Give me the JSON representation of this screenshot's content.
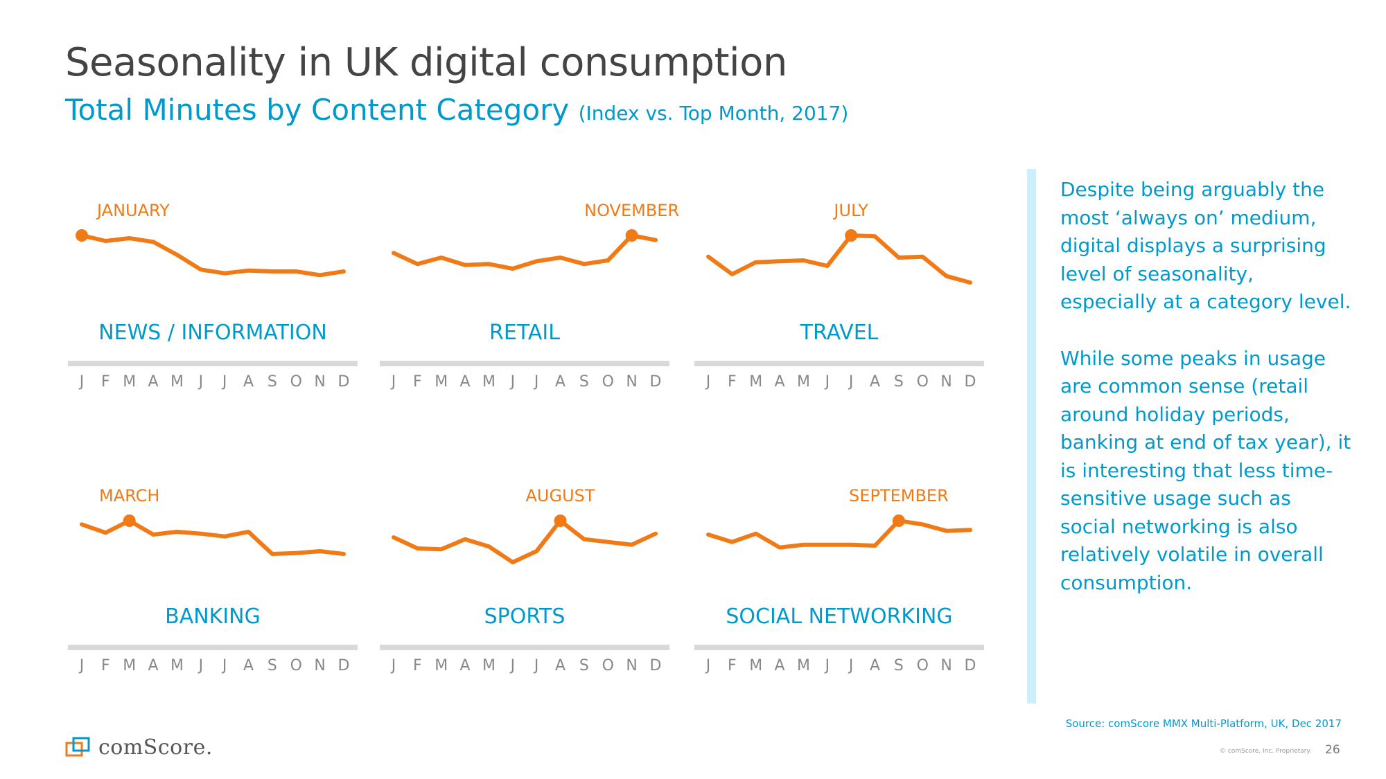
{
  "header": {
    "title": "Seasonality in UK digital consumption",
    "subtitle": "Total Minutes by Content Category",
    "subtitle_note": "(Index vs. Top Month, 2017)"
  },
  "chart_data": [
    {
      "type": "line",
      "title": "NEWS / INFORMATION",
      "peak_label": "JANUARY",
      "peak_index": 0,
      "categories": [
        "J",
        "F",
        "M",
        "A",
        "M",
        "J",
        "J",
        "A",
        "S",
        "O",
        "N",
        "D"
      ],
      "values": [
        100,
        94,
        97,
        93,
        79,
        63,
        59,
        62,
        61,
        61,
        57,
        61
      ],
      "ylim": [
        0,
        100
      ]
    },
    {
      "type": "line",
      "title": "RETAIL",
      "peak_label": "NOVEMBER",
      "peak_index": 10,
      "categories": [
        "J",
        "F",
        "M",
        "A",
        "M",
        "J",
        "J",
        "A",
        "S",
        "O",
        "N",
        "D"
      ],
      "values": [
        81,
        69,
        76,
        68,
        69,
        64,
        72,
        76,
        69,
        73,
        100,
        95
      ],
      "ylim": [
        0,
        100
      ]
    },
    {
      "type": "line",
      "title": "TRAVEL",
      "peak_label": "JULY",
      "peak_index": 6,
      "categories": [
        "J",
        "F",
        "M",
        "A",
        "M",
        "J",
        "J",
        "A",
        "S",
        "O",
        "N",
        "D"
      ],
      "values": [
        77,
        58,
        71,
        72,
        73,
        67,
        100,
        99,
        76,
        77,
        56,
        49
      ],
      "ylim": [
        0,
        100
      ]
    },
    {
      "type": "line",
      "title": "BANKING",
      "peak_label": "MARCH",
      "peak_index": 2,
      "categories": [
        "J",
        "F",
        "M",
        "A",
        "M",
        "J",
        "J",
        "A",
        "S",
        "O",
        "N",
        "D"
      ],
      "values": [
        96,
        87,
        100,
        85,
        88,
        86,
        83,
        88,
        64,
        65,
        67,
        64
      ],
      "ylim": [
        0,
        100
      ]
    },
    {
      "type": "line",
      "title": "SPORTS",
      "peak_label": "AUGUST",
      "peak_index": 7,
      "categories": [
        "J",
        "F",
        "M",
        "A",
        "M",
        "J",
        "J",
        "A",
        "S",
        "O",
        "N",
        "D"
      ],
      "values": [
        82,
        70,
        69,
        80,
        72,
        55,
        67,
        100,
        80,
        77,
        74,
        86
      ],
      "ylim": [
        0,
        100
      ]
    },
    {
      "type": "line",
      "title": "SOCIAL NETWORKING",
      "peak_label": "SEPTEMBER",
      "peak_index": 8,
      "categories": [
        "J",
        "F",
        "M",
        "A",
        "M",
        "J",
        "J",
        "A",
        "S",
        "O",
        "N",
        "D"
      ],
      "values": [
        85,
        77,
        86,
        71,
        74,
        74,
        74,
        73,
        100,
        96,
        89,
        90
      ],
      "ylim": [
        0,
        100
      ]
    }
  ],
  "colors": {
    "line": "#f07a16",
    "accent": "#0099cc",
    "axis": "#d9d9d9",
    "month_text": "#888888"
  },
  "commentary": {
    "p1": "Despite being arguably the most ‘always on’ medium, digital displays a surprising level of seasonality, especially at a category level.",
    "p2": "While some peaks in usage are common sense (retail around holiday periods, banking at end of tax year), it is interesting that less time-sensitive usage such as social networking is also relatively volatile in overall consumption."
  },
  "footer": {
    "source": "Source: comScore MMX Multi-Platform, UK, Dec 2017",
    "copyright": "© comScore, Inc. Proprietary.",
    "page_number": "26",
    "logo_text": "comScore."
  }
}
